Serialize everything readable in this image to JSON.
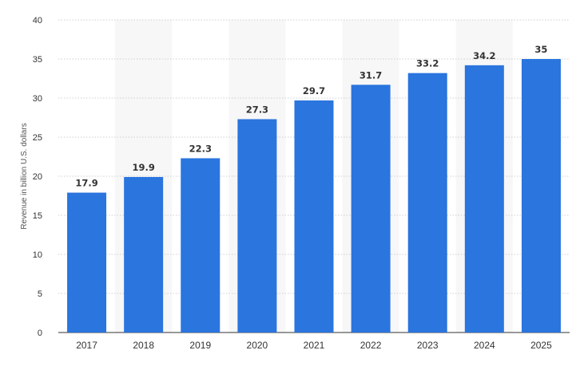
{
  "chart_data": {
    "type": "bar",
    "title": "",
    "xlabel": "",
    "ylabel": "Revenue in billion U.S. dollars",
    "categories": [
      "2017",
      "2018",
      "2019",
      "2020",
      "2021",
      "2022",
      "2023",
      "2024",
      "2025"
    ],
    "values": [
      17.9,
      19.9,
      22.3,
      27.3,
      29.7,
      31.7,
      33.2,
      34.2,
      35
    ],
    "data_labels": [
      "17.9",
      "19.9",
      "22.3",
      "27.3",
      "29.7",
      "31.7",
      "33.2",
      "34.2",
      "35"
    ],
    "ylim": [
      0,
      40
    ],
    "yticks": [
      0,
      5,
      10,
      15,
      20,
      25,
      30,
      35,
      40
    ],
    "grid": true,
    "legend": "none",
    "colors": {
      "bar": "#2a75de",
      "band": "#f7f7f7",
      "grid": "#cfcfcf",
      "axis": "#333333"
    }
  }
}
